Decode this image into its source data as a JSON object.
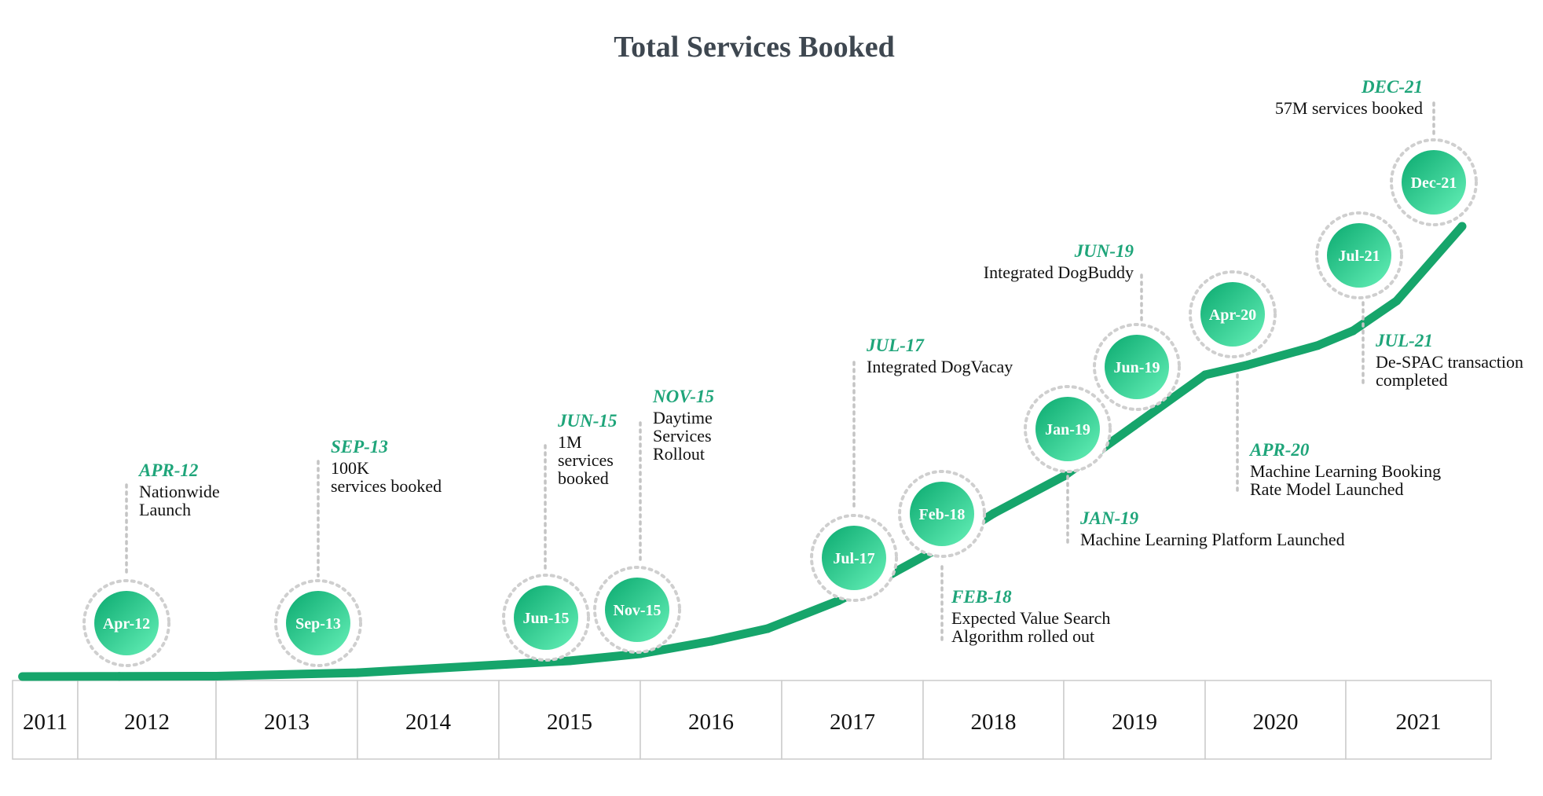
{
  "chart_data": {
    "type": "line",
    "title": "Total Services Booked",
    "xlabel": "",
    "ylabel": "",
    "years": [
      "2011",
      "2012",
      "2013",
      "2014",
      "2015",
      "2016",
      "2017",
      "2018",
      "2019",
      "2020",
      "2021"
    ],
    "series": [
      {
        "name": "Total Services Booked",
        "color": "#16a56b",
        "x": [
          2011.6,
          2012.3,
          2013.0,
          2014.0,
          2015.0,
          2015.5,
          2016.0,
          2016.5,
          2016.9,
          2017.4,
          2017.75,
          2018.1,
          2018.5,
          2019.0,
          2019.5,
          2020.0,
          2020.3,
          2020.8,
          2021.05,
          2021.35,
          2021.8
        ],
        "values": [
          0.0,
          0.01,
          0.02,
          0.18,
          0.55,
          1.0,
          1.8,
          2.9,
          4.0,
          6.8,
          9.3,
          12.2,
          16.0,
          20.0,
          27.0,
          34.0,
          36.0,
          40.0,
          43.0,
          47.0,
          57.0
        ]
      }
    ],
    "unit": "M services booked",
    "milestones": [
      {
        "id": "apr-12",
        "marker": "Apr-12",
        "date_label": "APR-12",
        "text": [
          "Nationwide",
          "Launch"
        ],
        "position": "above"
      },
      {
        "id": "sep-13",
        "marker": "Sep-13",
        "date_label": "SEP-13",
        "text": [
          "100K",
          "services booked"
        ],
        "position": "above"
      },
      {
        "id": "jun-15",
        "marker": "Jun-15",
        "date_label": "JUN-15",
        "text": [
          "1M",
          "services",
          "booked"
        ],
        "position": "above"
      },
      {
        "id": "nov-15",
        "marker": "Nov-15",
        "date_label": "NOV-15",
        "text": [
          "Daytime",
          "Services",
          "Rollout"
        ],
        "position": "above"
      },
      {
        "id": "jul-17",
        "marker": "Jul-17",
        "date_label": "JUL-17",
        "text": [
          "Integrated DogVacay"
        ],
        "position": "above"
      },
      {
        "id": "feb-18",
        "marker": "Feb-18",
        "date_label": "FEB-18",
        "text": [
          "Expected Value Search",
          "Algorithm rolled out"
        ],
        "position": "below"
      },
      {
        "id": "jan-19",
        "marker": "Jan-19",
        "date_label": "JAN-19",
        "text": [
          "Machine Learning Platform Launched"
        ],
        "position": "below"
      },
      {
        "id": "jun-19",
        "marker": "Jun-19",
        "date_label": "JUN-19",
        "text": [
          "Integrated DogBuddy"
        ],
        "position": "above"
      },
      {
        "id": "apr-20",
        "marker": "Apr-20",
        "date_label": "APR-20",
        "text": [
          "Machine Learning Booking",
          "Rate Model Launched"
        ],
        "position": "below"
      },
      {
        "id": "jul-21",
        "marker": "Jul-21",
        "date_label": "JUL-21",
        "text": [
          "De-SPAC transaction",
          "completed"
        ],
        "position": "below"
      },
      {
        "id": "dec-21",
        "marker": "Dec-21",
        "date_label": "DEC-21",
        "text": [
          "57M services booked"
        ],
        "position": "above"
      }
    ]
  },
  "colors": {
    "accent": "#1fa57a",
    "line": "#16a56b",
    "marker_light": "#58e6ad",
    "marker_dark": "#18b47a",
    "title": "#3e4750"
  }
}
